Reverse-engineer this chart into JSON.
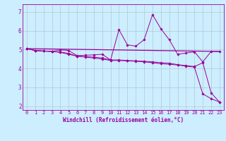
{
  "xlabel": "Windchill (Refroidissement éolien,°C)",
  "background_color": "#cceeff",
  "line_color": "#990099",
  "grid_color": "#aabbbb",
  "xlim": [
    -0.5,
    23.5
  ],
  "ylim": [
    1.8,
    7.4
  ],
  "yticks": [
    2,
    3,
    4,
    5,
    6,
    7
  ],
  "xticks": [
    0,
    1,
    2,
    3,
    4,
    5,
    6,
    7,
    8,
    9,
    10,
    11,
    12,
    13,
    14,
    15,
    16,
    17,
    18,
    19,
    20,
    21,
    22,
    23
  ],
  "series1_x": [
    0,
    1,
    2,
    3,
    4,
    5,
    6,
    7,
    8,
    9,
    10,
    11,
    12,
    13,
    14,
    15,
    16,
    17,
    18,
    19,
    20,
    21,
    22,
    23
  ],
  "series1_y": [
    5.05,
    4.95,
    4.92,
    4.9,
    4.98,
    4.95,
    4.68,
    4.7,
    4.72,
    4.75,
    4.45,
    6.05,
    5.25,
    5.18,
    5.52,
    6.85,
    6.1,
    5.52,
    4.75,
    4.82,
    4.88,
    4.35,
    4.9,
    4.9
  ],
  "series2_x": [
    0,
    1,
    2,
    3,
    4,
    5,
    6,
    7,
    8,
    9,
    10,
    11,
    12,
    13,
    14,
    15,
    16,
    17,
    18,
    19,
    20,
    21,
    22,
    23
  ],
  "series2_y": [
    5.05,
    4.95,
    4.92,
    4.9,
    4.87,
    4.8,
    4.65,
    4.62,
    4.6,
    4.55,
    4.45,
    4.45,
    4.42,
    4.4,
    4.38,
    4.35,
    4.3,
    4.28,
    4.2,
    4.15,
    4.1,
    4.3,
    2.7,
    2.22
  ],
  "series3_x": [
    0,
    1,
    2,
    3,
    4,
    5,
    6,
    7,
    8,
    9,
    10,
    11,
    12,
    13,
    14,
    15,
    16,
    17,
    18,
    19,
    20,
    21,
    22,
    23
  ],
  "series3_y": [
    5.05,
    4.95,
    4.92,
    4.9,
    4.85,
    4.75,
    4.65,
    4.6,
    4.55,
    4.5,
    4.42,
    4.42,
    4.4,
    4.38,
    4.35,
    4.3,
    4.25,
    4.22,
    4.18,
    4.12,
    4.07,
    2.65,
    2.4,
    2.22
  ],
  "series4_x": [
    0,
    23
  ],
  "series4_y": [
    5.05,
    4.9
  ],
  "tick_fontsize": 5.0,
  "xlabel_fontsize": 5.5
}
